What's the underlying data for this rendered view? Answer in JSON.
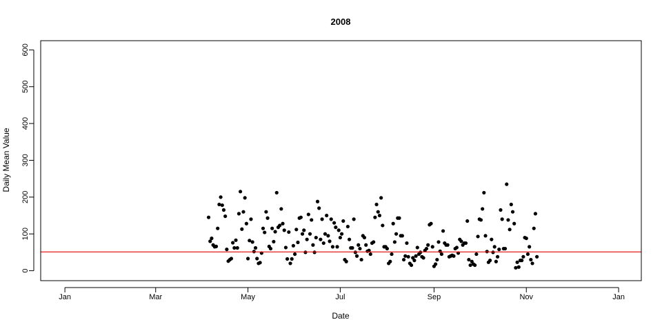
{
  "chart_data": {
    "type": "scatter",
    "title": "2008",
    "xlabel": "Date",
    "ylabel": "Daily Mean Value",
    "xlim": [
      "2007-12-16",
      "2009-01-16"
    ],
    "ylim": [
      -27,
      625
    ],
    "x_ticks": [
      {
        "date": "2008-01-01",
        "label": "Jan"
      },
      {
        "date": "2008-03-01",
        "label": "Mar"
      },
      {
        "date": "2008-05-01",
        "label": "May"
      },
      {
        "date": "2008-07-01",
        "label": "Jul"
      },
      {
        "date": "2008-09-01",
        "label": "Sep"
      },
      {
        "date": "2008-11-01",
        "label": "Nov"
      },
      {
        "date": "2009-01-01",
        "label": "Jan"
      }
    ],
    "y_ticks": [
      0,
      100,
      200,
      300,
      400,
      500,
      600
    ],
    "reference_line": {
      "y": 51,
      "color": "#e41a1c"
    },
    "point_color": "#000000",
    "grid": false,
    "points": [
      [
        "2008-04-05",
        145
      ],
      [
        "2008-04-06",
        80
      ],
      [
        "2008-04-07",
        88
      ],
      [
        "2008-04-08",
        70
      ],
      [
        "2008-04-09",
        65
      ],
      [
        "2008-04-10",
        66
      ],
      [
        "2008-04-11",
        115
      ],
      [
        "2008-04-12",
        180
      ],
      [
        "2008-04-13",
        200
      ],
      [
        "2008-04-14",
        178
      ],
      [
        "2008-04-15",
        165
      ],
      [
        "2008-04-16",
        148
      ],
      [
        "2008-04-17",
        58
      ],
      [
        "2008-04-18",
        26
      ],
      [
        "2008-04-19",
        30
      ],
      [
        "2008-04-20",
        33
      ],
      [
        "2008-04-21",
        76
      ],
      [
        "2008-04-22",
        62
      ],
      [
        "2008-04-23",
        83
      ],
      [
        "2008-04-24",
        62
      ],
      [
        "2008-04-25",
        155
      ],
      [
        "2008-04-26",
        215
      ],
      [
        "2008-04-27",
        113
      ],
      [
        "2008-04-28",
        160
      ],
      [
        "2008-04-29",
        198
      ],
      [
        "2008-04-30",
        128
      ],
      [
        "2008-05-01",
        33
      ],
      [
        "2008-05-02",
        82
      ],
      [
        "2008-05-03",
        140
      ],
      [
        "2008-05-04",
        78
      ],
      [
        "2008-05-05",
        52
      ],
      [
        "2008-05-06",
        62
      ],
      [
        "2008-05-07",
        33
      ],
      [
        "2008-05-08",
        20
      ],
      [
        "2008-05-09",
        22
      ],
      [
        "2008-05-10",
        48
      ],
      [
        "2008-05-11",
        115
      ],
      [
        "2008-05-12",
        104
      ],
      [
        "2008-05-13",
        160
      ],
      [
        "2008-05-14",
        143
      ],
      [
        "2008-05-15",
        66
      ],
      [
        "2008-05-16",
        60
      ],
      [
        "2008-05-17",
        115
      ],
      [
        "2008-05-18",
        79
      ],
      [
        "2008-05-19",
        106
      ],
      [
        "2008-05-20",
        212
      ],
      [
        "2008-05-21",
        118
      ],
      [
        "2008-05-22",
        123
      ],
      [
        "2008-05-23",
        168
      ],
      [
        "2008-05-24",
        128
      ],
      [
        "2008-05-25",
        110
      ],
      [
        "2008-05-26",
        63
      ],
      [
        "2008-05-27",
        32
      ],
      [
        "2008-05-28",
        105
      ],
      [
        "2008-05-29",
        20
      ],
      [
        "2008-05-30",
        32
      ],
      [
        "2008-05-31",
        68
      ],
      [
        "2008-06-01",
        45
      ],
      [
        "2008-06-02",
        112
      ],
      [
        "2008-06-03",
        77
      ],
      [
        "2008-06-04",
        143
      ],
      [
        "2008-06-05",
        145
      ],
      [
        "2008-06-06",
        100
      ],
      [
        "2008-06-07",
        110
      ],
      [
        "2008-06-08",
        50
      ],
      [
        "2008-06-09",
        85
      ],
      [
        "2008-06-10",
        153
      ],
      [
        "2008-06-11",
        100
      ],
      [
        "2008-06-12",
        138
      ],
      [
        "2008-06-13",
        70
      ],
      [
        "2008-06-14",
        50
      ],
      [
        "2008-06-15",
        90
      ],
      [
        "2008-06-16",
        188
      ],
      [
        "2008-06-17",
        170
      ],
      [
        "2008-06-18",
        85
      ],
      [
        "2008-06-19",
        140
      ],
      [
        "2008-06-20",
        75
      ],
      [
        "2008-06-21",
        100
      ],
      [
        "2008-06-22",
        150
      ],
      [
        "2008-06-23",
        95
      ],
      [
        "2008-06-24",
        80
      ],
      [
        "2008-06-25",
        140
      ],
      [
        "2008-06-26",
        65
      ],
      [
        "2008-06-27",
        130
      ],
      [
        "2008-06-28",
        118
      ],
      [
        "2008-06-29",
        65
      ],
      [
        "2008-06-30",
        110
      ],
      [
        "2008-07-01",
        90
      ],
      [
        "2008-07-02",
        100
      ],
      [
        "2008-07-03",
        135
      ],
      [
        "2008-07-04",
        30
      ],
      [
        "2008-07-05",
        25
      ],
      [
        "2008-07-06",
        120
      ],
      [
        "2008-07-07",
        85
      ],
      [
        "2008-07-08",
        62
      ],
      [
        "2008-07-09",
        62
      ],
      [
        "2008-07-10",
        140
      ],
      [
        "2008-07-11",
        50
      ],
      [
        "2008-07-12",
        40
      ],
      [
        "2008-07-13",
        70
      ],
      [
        "2008-07-14",
        60
      ],
      [
        "2008-07-15",
        30
      ],
      [
        "2008-07-16",
        95
      ],
      [
        "2008-07-17",
        90
      ],
      [
        "2008-07-18",
        70
      ],
      [
        "2008-07-19",
        53
      ],
      [
        "2008-07-20",
        55
      ],
      [
        "2008-07-21",
        45
      ],
      [
        "2008-07-22",
        75
      ],
      [
        "2008-07-23",
        78
      ],
      [
        "2008-07-24",
        145
      ],
      [
        "2008-07-25",
        180
      ],
      [
        "2008-07-26",
        160
      ],
      [
        "2008-07-27",
        150
      ],
      [
        "2008-07-28",
        198
      ],
      [
        "2008-07-29",
        123
      ],
      [
        "2008-07-30",
        65
      ],
      [
        "2008-07-31",
        65
      ],
      [
        "2008-08-01",
        60
      ],
      [
        "2008-08-02",
        20
      ],
      [
        "2008-08-03",
        25
      ],
      [
        "2008-08-04",
        45
      ],
      [
        "2008-08-05",
        128
      ],
      [
        "2008-08-06",
        78
      ],
      [
        "2008-08-07",
        100
      ],
      [
        "2008-08-08",
        143
      ],
      [
        "2008-08-09",
        143
      ],
      [
        "2008-08-10",
        95
      ],
      [
        "2008-08-11",
        95
      ],
      [
        "2008-08-12",
        30
      ],
      [
        "2008-08-13",
        40
      ],
      [
        "2008-08-14",
        75
      ],
      [
        "2008-08-15",
        38
      ],
      [
        "2008-08-16",
        20
      ],
      [
        "2008-08-17",
        15
      ],
      [
        "2008-08-18",
        35
      ],
      [
        "2008-08-19",
        28
      ],
      [
        "2008-08-20",
        40
      ],
      [
        "2008-08-21",
        63
      ],
      [
        "2008-08-22",
        45
      ],
      [
        "2008-08-23",
        50
      ],
      [
        "2008-08-24",
        38
      ],
      [
        "2008-08-25",
        35
      ],
      [
        "2008-08-26",
        55
      ],
      [
        "2008-08-27",
        60
      ],
      [
        "2008-08-28",
        70
      ],
      [
        "2008-08-29",
        125
      ],
      [
        "2008-08-30",
        128
      ],
      [
        "2008-08-31",
        65
      ],
      [
        "2008-09-01",
        12
      ],
      [
        "2008-09-02",
        18
      ],
      [
        "2008-09-03",
        30
      ],
      [
        "2008-09-04",
        78
      ],
      [
        "2008-09-05",
        53
      ],
      [
        "2008-09-06",
        45
      ],
      [
        "2008-09-07",
        108
      ],
      [
        "2008-09-08",
        75
      ],
      [
        "2008-09-09",
        70
      ],
      [
        "2008-09-10",
        70
      ],
      [
        "2008-09-11",
        38
      ],
      [
        "2008-09-12",
        40
      ],
      [
        "2008-09-13",
        42
      ],
      [
        "2008-09-14",
        40
      ],
      [
        "2008-09-15",
        60
      ],
      [
        "2008-09-16",
        63
      ],
      [
        "2008-09-17",
        48
      ],
      [
        "2008-09-18",
        85
      ],
      [
        "2008-09-19",
        80
      ],
      [
        "2008-09-20",
        70
      ],
      [
        "2008-09-21",
        75
      ],
      [
        "2008-09-22",
        75
      ],
      [
        "2008-09-23",
        135
      ],
      [
        "2008-09-24",
        30
      ],
      [
        "2008-09-25",
        15
      ],
      [
        "2008-09-26",
        25
      ],
      [
        "2008-09-27",
        18
      ],
      [
        "2008-09-28",
        15
      ],
      [
        "2008-09-29",
        45
      ],
      [
        "2008-09-30",
        93
      ],
      [
        "2008-10-01",
        140
      ],
      [
        "2008-10-02",
        138
      ],
      [
        "2008-10-03",
        168
      ],
      [
        "2008-10-04",
        212
      ],
      [
        "2008-10-05",
        95
      ],
      [
        "2008-10-06",
        52
      ],
      [
        "2008-10-07",
        23
      ],
      [
        "2008-10-08",
        28
      ],
      [
        "2008-10-09",
        85
      ],
      [
        "2008-10-10",
        50
      ],
      [
        "2008-10-11",
        65
      ],
      [
        "2008-10-12",
        25
      ],
      [
        "2008-10-13",
        38
      ],
      [
        "2008-10-14",
        58
      ],
      [
        "2008-10-15",
        165
      ],
      [
        "2008-10-16",
        140
      ],
      [
        "2008-10-17",
        60
      ],
      [
        "2008-10-18",
        60
      ],
      [
        "2008-10-19",
        235
      ],
      [
        "2008-10-20",
        138
      ],
      [
        "2008-10-21",
        112
      ],
      [
        "2008-10-22",
        180
      ],
      [
        "2008-10-23",
        160
      ],
      [
        "2008-10-24",
        128
      ],
      [
        "2008-10-25",
        8
      ],
      [
        "2008-10-26",
        23
      ],
      [
        "2008-10-27",
        10
      ],
      [
        "2008-10-28",
        28
      ],
      [
        "2008-10-29",
        28
      ],
      [
        "2008-10-30",
        38
      ],
      [
        "2008-10-31",
        90
      ],
      [
        "2008-11-01",
        88
      ],
      [
        "2008-11-02",
        45
      ],
      [
        "2008-11-03",
        65
      ],
      [
        "2008-11-04",
        30
      ],
      [
        "2008-11-05",
        20
      ],
      [
        "2008-11-06",
        115
      ],
      [
        "2008-11-07",
        155
      ],
      [
        "2008-11-08",
        38
      ]
    ]
  }
}
